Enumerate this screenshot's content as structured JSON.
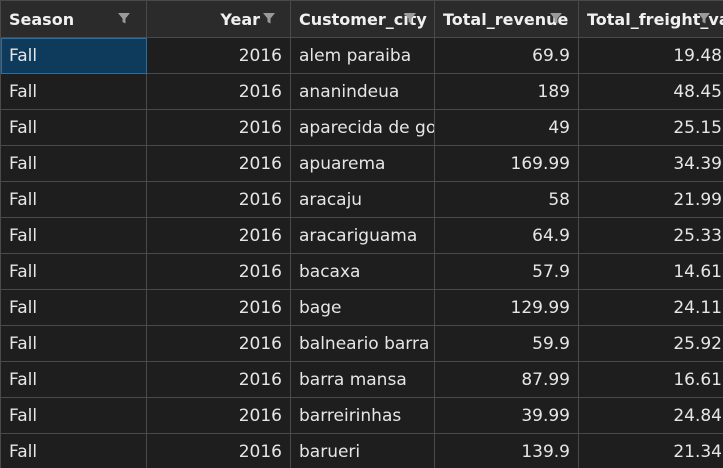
{
  "columns": [
    {
      "label": "Season",
      "align": "left"
    },
    {
      "label": "Year",
      "align": "right"
    },
    {
      "label": "Customer_city",
      "align": "left"
    },
    {
      "label": "Total_revenue",
      "align": "right"
    },
    {
      "label": "Total_freight_va",
      "align": "right"
    }
  ],
  "filter_icon": "funnel-icon",
  "colors": {
    "background": "#1e1e1e",
    "header_bg": "#2b2b2b",
    "grid_line": "#4a4a4a",
    "selected_cell": "#0e3a5c"
  },
  "rows": [
    [
      "Fall",
      "2016",
      "alem paraiba",
      "69.9",
      "19.48"
    ],
    [
      "Fall",
      "2016",
      "ananindeua",
      "189",
      "48.45"
    ],
    [
      "Fall",
      "2016",
      "aparecida de go",
      "49",
      "25.15"
    ],
    [
      "Fall",
      "2016",
      "apuarema",
      "169.99",
      "34.39"
    ],
    [
      "Fall",
      "2016",
      "aracaju",
      "58",
      "21.99"
    ],
    [
      "Fall",
      "2016",
      "aracariguama",
      "64.9",
      "25.33"
    ],
    [
      "Fall",
      "2016",
      "bacaxa",
      "57.9",
      "14.61"
    ],
    [
      "Fall",
      "2016",
      "bage",
      "129.99",
      "24.11"
    ],
    [
      "Fall",
      "2016",
      "balneario barra c",
      "59.9",
      "25.92"
    ],
    [
      "Fall",
      "2016",
      "barra mansa",
      "87.99",
      "16.61"
    ],
    [
      "Fall",
      "2016",
      "barreirinhas",
      "39.99",
      "24.84"
    ],
    [
      "Fall",
      "2016",
      "barueri",
      "139.9",
      "21.34"
    ]
  ]
}
